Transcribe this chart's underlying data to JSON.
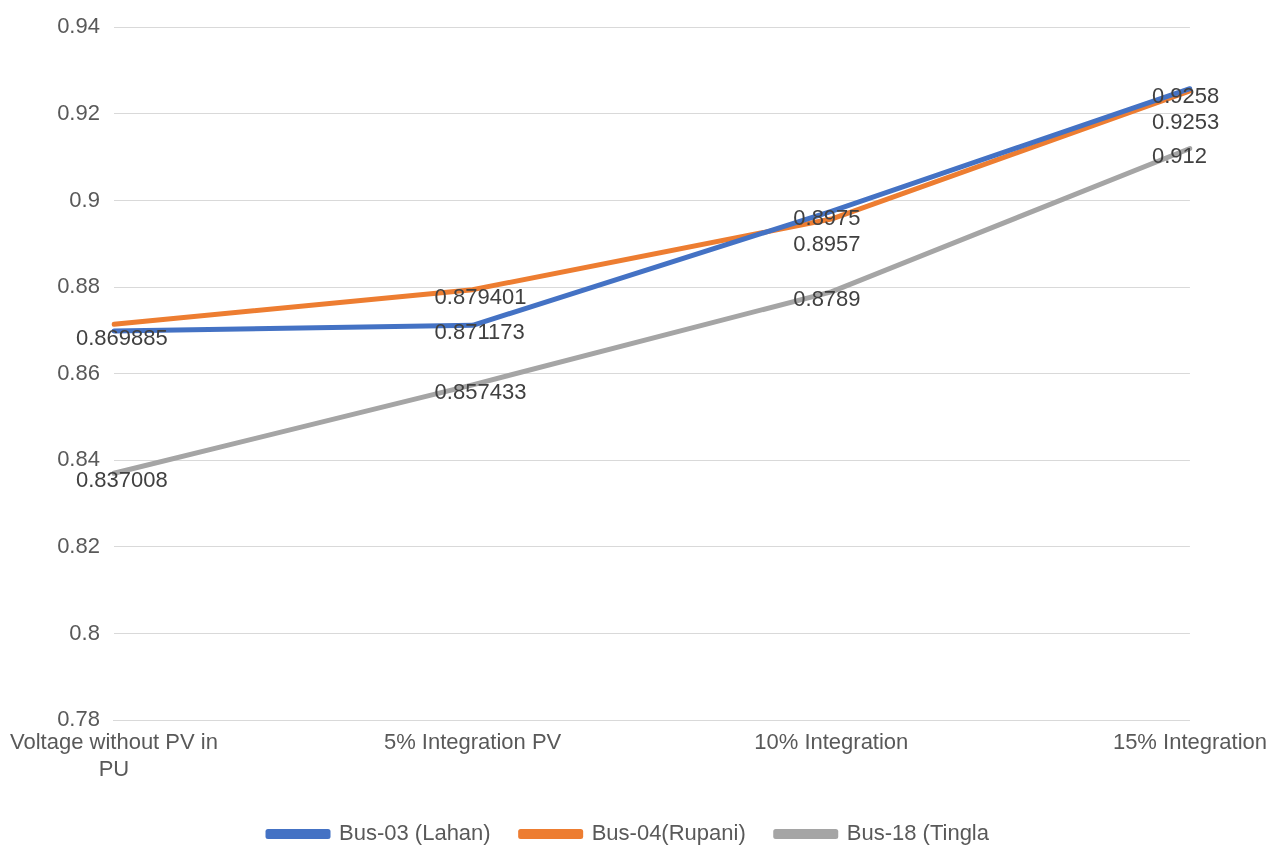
{
  "chart_data": {
    "type": "line",
    "categories": [
      "Voltage without PV in PU",
      "5% Integration PV",
      "10% Integration",
      "15% Integration"
    ],
    "series": [
      {
        "name": "Bus-03 (Lahan)",
        "color": "#4472c4",
        "values": [
          0.869885,
          0.871173,
          0.8975,
          0.9258
        ],
        "value_labels": [
          "0.869885",
          "0.871173",
          "0.8975",
          "0.9258"
        ]
      },
      {
        "name": "Bus-04(Rupani)",
        "color": "#ed7d31",
        "values": [
          0.8714,
          0.879401,
          0.8957,
          0.9253
        ],
        "value_labels": [
          null,
          "0.879401",
          "0.8957",
          "0.9253"
        ]
      },
      {
        "name": "Bus-18 (Tingla",
        "color": "#a5a5a5",
        "values": [
          0.837008,
          0.857433,
          0.8789,
          0.912
        ],
        "value_labels": [
          "0.837008",
          "0.857433",
          "0.8789",
          "0.912"
        ]
      }
    ],
    "ylim": [
      0.78,
      0.94
    ],
    "yticks": [
      0.78,
      0.8,
      0.82,
      0.84,
      0.86,
      0.88,
      0.9,
      0.92,
      0.94
    ],
    "grid": "y",
    "legend": "bottom",
    "marker": "none",
    "line_style": "solid"
  }
}
